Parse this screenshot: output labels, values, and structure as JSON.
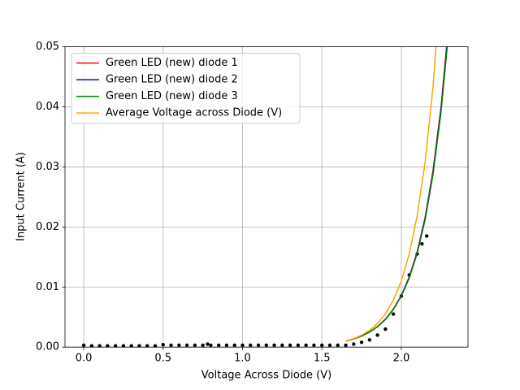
{
  "chart_data": {
    "type": "line",
    "xlabel": "Voltage Across Diode (V)",
    "ylabel": "Input Current (A)",
    "xlim": [
      -0.118,
      2.42
    ],
    "ylim": [
      0,
      0.05
    ],
    "xticks": [
      {
        "value": 0,
        "label": "0.0"
      },
      0.5,
      {
        "value": 1,
        "label": "1.0"
      },
      1.5,
      {
        "value": 2,
        "label": "2.0"
      }
    ],
    "yticks": [
      {
        "value": 0,
        "label": "0.00"
      },
      0.01,
      0.02,
      0.03,
      0.04,
      0.05
    ],
    "grid": true,
    "legend": "upper left",
    "scatter": {
      "color": "#000000",
      "x": [
        0,
        0.05,
        0.1,
        0.15,
        0.2,
        0.25,
        0.3,
        0.35,
        0.4,
        0.45,
        0.5,
        0.55,
        0.6,
        0.65,
        0.7,
        0.75,
        0.78,
        0.8,
        0.85,
        0.9,
        0.95,
        1.0,
        1.05,
        1.1,
        1.15,
        1.2,
        1.25,
        1.3,
        1.35,
        1.4,
        1.45,
        1.5,
        1.55,
        1.6,
        1.65,
        1.7,
        1.75,
        1.8,
        1.85,
        1.9,
        1.95,
        2.0,
        2.05,
        2.1,
        2.13,
        2.16
      ],
      "values": [
        0.0003,
        0.0002,
        0.0002,
        0.0002,
        0.0002,
        0.0002,
        0.0002,
        0.0002,
        0.0002,
        0.0002,
        0.0004,
        0.0003,
        0.0003,
        0.0003,
        0.0003,
        0.0003,
        0.0005,
        0.0003,
        0.0003,
        0.0003,
        0.0003,
        0.0003,
        0.0003,
        0.0003,
        0.0003,
        0.0003,
        0.0003,
        0.0003,
        0.0003,
        0.0003,
        0.0003,
        0.0003,
        0.0003,
        0.0003,
        0.0003,
        0.0005,
        0.0008,
        0.0012,
        0.002,
        0.003,
        0.0055,
        0.0085,
        0.012,
        0.0155,
        0.0172,
        0.0185
      ]
    },
    "series": [
      {
        "name": "Green LED (new) diode 1",
        "color": "#ff0000",
        "x": [
          1.65,
          1.7,
          1.75,
          1.8,
          1.85,
          1.9,
          1.95,
          2.0,
          2.05,
          2.1,
          2.15,
          2.2,
          2.25,
          2.3
        ],
        "values": [
          0.001,
          0.00136,
          0.00185,
          0.00252,
          0.00342,
          0.00465,
          0.00632,
          0.0086,
          0.0117,
          0.0159,
          0.0216,
          0.0294,
          0.0399,
          0.0543
        ]
      },
      {
        "name": "Green LED (new) diode 2",
        "color": "#0000ff",
        "x": [
          1.65,
          1.7,
          1.75,
          1.8,
          1.85,
          1.9,
          1.95,
          2.0,
          2.05,
          2.1,
          2.15,
          2.2,
          2.25,
          2.3
        ],
        "values": [
          0.001,
          0.00136,
          0.00184,
          0.00251,
          0.0034,
          0.00463,
          0.00628,
          0.00854,
          0.0116,
          0.0157,
          0.0214,
          0.0291,
          0.0395,
          0.0536
        ]
      },
      {
        "name": "Green LED (new) diode 3",
        "color": "#008000",
        "x": [
          1.65,
          1.7,
          1.75,
          1.8,
          1.85,
          1.9,
          1.95,
          2.0,
          2.05,
          2.1,
          2.15,
          2.2,
          2.25,
          2.3
        ],
        "values": [
          0.001,
          0.00136,
          0.00184,
          0.0025,
          0.00339,
          0.00461,
          0.00625,
          0.00849,
          0.0115,
          0.0156,
          0.0212,
          0.0288,
          0.0391,
          0.053
        ]
      },
      {
        "name": "Average Voltage across Diode (V)",
        "color": "#ffa500",
        "x": [
          1.65,
          1.7,
          1.75,
          1.8,
          1.85,
          1.9,
          1.95,
          2.0,
          2.05,
          2.1,
          2.15,
          2.2,
          2.25
        ],
        "values": [
          0.001,
          0.00141,
          0.00199,
          0.0028,
          0.00394,
          0.00555,
          0.00782,
          0.011,
          0.0155,
          0.0219,
          0.0308,
          0.0434,
          0.0612
        ]
      }
    ]
  }
}
